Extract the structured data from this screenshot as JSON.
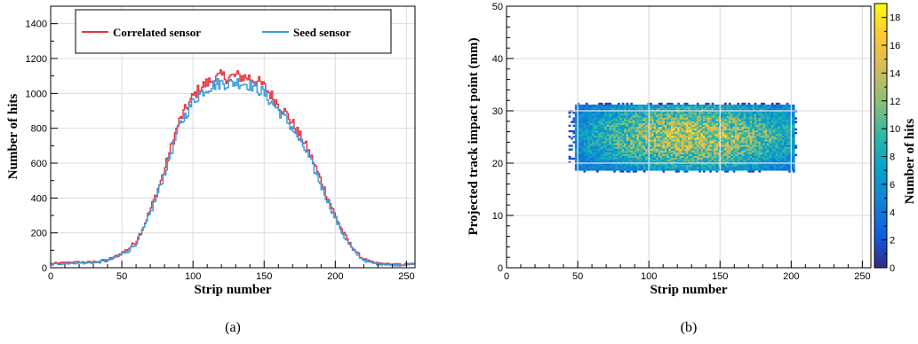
{
  "captions": [
    "(a)",
    "(b)"
  ],
  "colors": {
    "correlated": "#e8323c",
    "seed": "#3a9ad9"
  },
  "chart_data": [
    {
      "type": "line",
      "panel": "a",
      "xlabel": "Strip number",
      "ylabel": "Number of hits",
      "xlim": [
        0,
        256
      ],
      "ylim": [
        0,
        1500
      ],
      "xticks": [
        0,
        50,
        100,
        150,
        200,
        250
      ],
      "yticks": [
        0,
        200,
        400,
        600,
        800,
        1000,
        1200,
        1400
      ],
      "grid": true,
      "legend_position": "top",
      "x": [
        0,
        5,
        10,
        15,
        20,
        25,
        30,
        35,
        40,
        45,
        50,
        55,
        60,
        65,
        70,
        75,
        80,
        85,
        90,
        95,
        100,
        105,
        110,
        115,
        120,
        125,
        130,
        135,
        140,
        145,
        150,
        155,
        160,
        165,
        170,
        175,
        180,
        185,
        190,
        195,
        200,
        205,
        210,
        215,
        220,
        225,
        230,
        235,
        240,
        245,
        250,
        255
      ],
      "series": [
        {
          "name": "Correlated sensor",
          "values": [
            22,
            25,
            28,
            30,
            32,
            30,
            33,
            38,
            45,
            60,
            85,
            110,
            150,
            230,
            330,
            440,
            560,
            700,
            830,
            910,
            980,
            1030,
            1060,
            1080,
            1100,
            1090,
            1100,
            1095,
            1090,
            1070,
            1040,
            990,
            940,
            890,
            830,
            760,
            690,
            600,
            500,
            400,
            300,
            210,
            140,
            85,
            50,
            32,
            25,
            22,
            20,
            18,
            20,
            22
          ]
        },
        {
          "name": "Seed sensor",
          "values": [
            18,
            22,
            25,
            28,
            28,
            27,
            30,
            34,
            40,
            55,
            78,
            100,
            140,
            215,
            310,
            420,
            540,
            670,
            800,
            880,
            950,
            1000,
            1030,
            1050,
            1060,
            1055,
            1065,
            1060,
            1050,
            1030,
            1000,
            950,
            905,
            855,
            800,
            730,
            660,
            570,
            475,
            380,
            285,
            200,
            130,
            80,
            45,
            28,
            22,
            20,
            18,
            15,
            18,
            20
          ]
        }
      ]
    },
    {
      "type": "heatmap",
      "panel": "b",
      "xlabel": "Strip number",
      "ylabel": "Projected track impact point (mm)",
      "colorbar_label": "Number of hits",
      "xlim": [
        0,
        256
      ],
      "ylim": [
        0,
        50
      ],
      "xticks": [
        0,
        50,
        100,
        150,
        200,
        250
      ],
      "yticks": [
        0,
        10,
        20,
        30,
        40,
        50
      ],
      "zlim": [
        0,
        19
      ],
      "zticks": [
        0,
        2,
        4,
        6,
        8,
        10,
        12,
        14,
        16,
        18
      ],
      "grid": true,
      "occupied_region": {
        "x_range": [
          48,
          202
        ],
        "y_range": [
          18.5,
          31
        ]
      },
      "peak": {
        "x": 130,
        "y": 25,
        "value": 12
      }
    }
  ]
}
